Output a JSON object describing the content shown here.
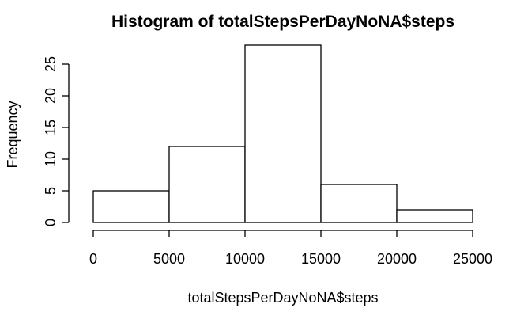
{
  "chart_data": {
    "type": "bar",
    "title": "Histogram of totalStepsPerDayNoNA$steps",
    "xlabel": "totalStepsPerDayNoNA$steps",
    "ylabel": "Frequency",
    "bins": [
      {
        "from": 0,
        "to": 5000,
        "count": 5
      },
      {
        "from": 5000,
        "to": 10000,
        "count": 12
      },
      {
        "from": 10000,
        "to": 15000,
        "count": 28
      },
      {
        "from": 15000,
        "to": 20000,
        "count": 6
      },
      {
        "from": 20000,
        "to": 25000,
        "count": 2
      }
    ],
    "xlim": [
      0,
      25000
    ],
    "ylim": [
      0,
      28
    ],
    "x_ticks": [
      "0",
      "5000",
      "10000",
      "15000",
      "20000",
      "25000"
    ],
    "y_ticks": [
      "0",
      "5",
      "10",
      "15",
      "20",
      "25"
    ],
    "grid": false,
    "bar_fill": "#ffffff",
    "bar_stroke": "#000000"
  }
}
